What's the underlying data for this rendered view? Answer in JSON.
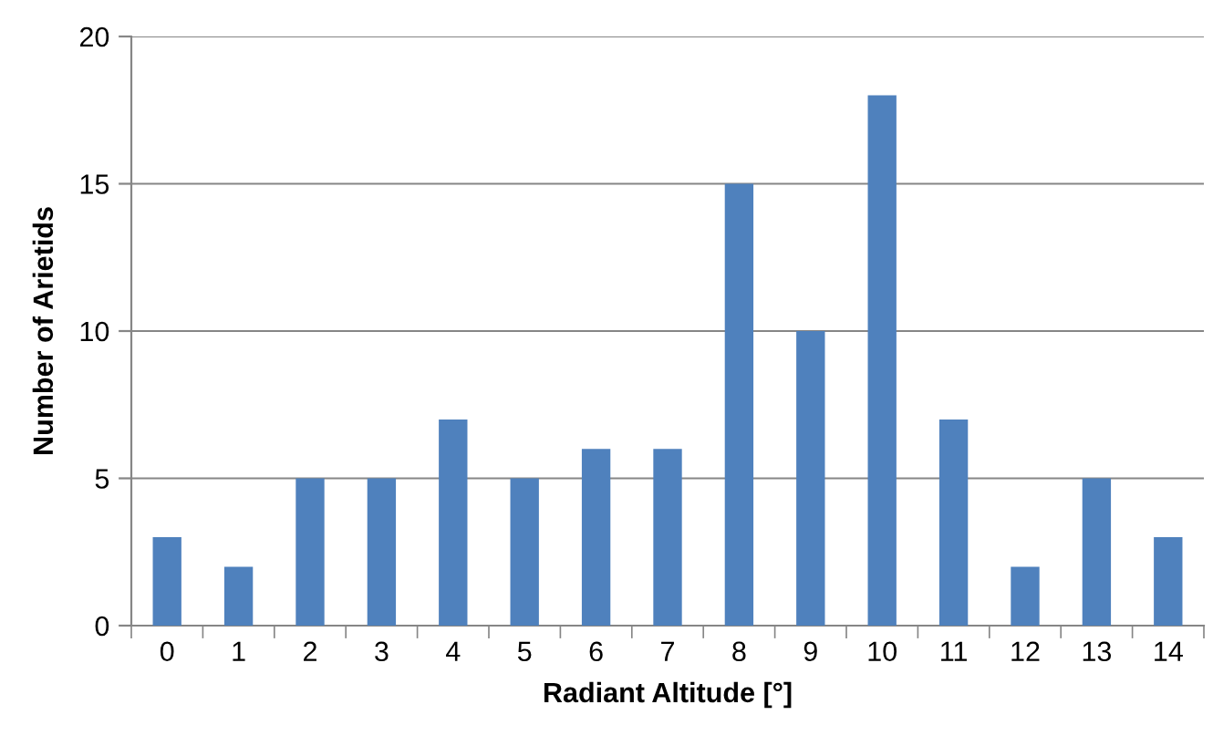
{
  "chart_data": {
    "type": "bar",
    "xlabel": "Radiant Altitude [°]",
    "ylabel": "Number of Arietids",
    "categories": [
      "0",
      "1",
      "2",
      "3",
      "4",
      "5",
      "6",
      "7",
      "8",
      "9",
      "10",
      "11",
      "12",
      "13",
      "14"
    ],
    "values": [
      3,
      2,
      5,
      5,
      7,
      5,
      6,
      6,
      15,
      10,
      18,
      7,
      2,
      5,
      3
    ],
    "color": "#4f81bd",
    "ylim": [
      0,
      20
    ],
    "yticks": [
      0,
      5,
      10,
      15,
      20
    ],
    "grid": "y",
    "legend": false
  }
}
